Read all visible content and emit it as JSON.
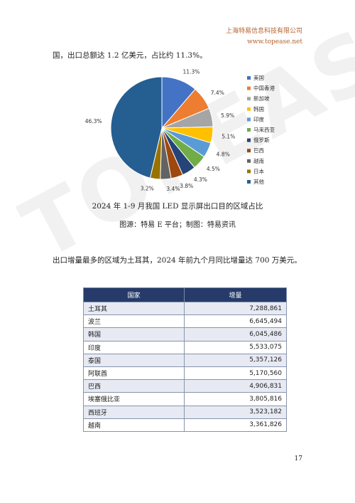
{
  "header": {
    "company": "上海特易信息科技有限公司",
    "website": "www.topease.net"
  },
  "intro_text": "国，出口总额达 1.2 亿美元，占比约 11.3%。",
  "watermark": "TOPEASE",
  "chart_data": {
    "type": "pie",
    "title": "2024 年 1-9 月我国 LED 显示屏出口目的区域占比",
    "source": "图源：特易 E 平台；制图：特易资讯",
    "legend_position": "right",
    "slices": [
      {
        "name": "美国",
        "value": 11.3,
        "label": "11.3%",
        "color": "#4472c4"
      },
      {
        "name": "中国香港",
        "value": 7.4,
        "label": "7.4%",
        "color": "#ed7d31"
      },
      {
        "name": "新加坡",
        "value": 5.9,
        "label": "5.9%",
        "color": "#a5a5a5"
      },
      {
        "name": "韩国",
        "value": 5.1,
        "label": "5.1%",
        "color": "#ffc000"
      },
      {
        "name": "印度",
        "value": 4.8,
        "label": "4.8%",
        "color": "#5b9bd5"
      },
      {
        "name": "马来西亚",
        "value": 4.5,
        "label": "4.5%",
        "color": "#70ad47"
      },
      {
        "name": "俄罗斯",
        "value": 4.3,
        "label": "4.3%",
        "color": "#264478"
      },
      {
        "name": "巴西",
        "value": 3.8,
        "label": "3.8%",
        "color": "#9e480e"
      },
      {
        "name": "越南",
        "value": 3.4,
        "label": "3.4%",
        "color": "#636363"
      },
      {
        "name": "日本",
        "value": 3.2,
        "label": "3.2%",
        "color": "#997300"
      },
      {
        "name": "其他",
        "value": 46.3,
        "label": "46.3%",
        "color": "#255e91"
      }
    ]
  },
  "paragraph2": "出口增量最多的区域为土耳其，2024 年前九个月同比增量达 700 万美元。",
  "table": {
    "headers": [
      "国家",
      "增量"
    ],
    "rows": [
      [
        "土耳其",
        "7,288,861"
      ],
      [
        "波兰",
        "6,645,494"
      ],
      [
        "韩国",
        "6,045,486"
      ],
      [
        "印度",
        "5,533,075"
      ],
      [
        "泰国",
        "5,357,126"
      ],
      [
        "阿联酋",
        "5,170,560"
      ],
      [
        "巴西",
        "4,906,831"
      ],
      [
        "埃塞俄比亚",
        "3,805,816"
      ],
      [
        "西班牙",
        "3,523,182"
      ],
      [
        "越南",
        "3,361,826"
      ]
    ]
  },
  "page_number": "17"
}
